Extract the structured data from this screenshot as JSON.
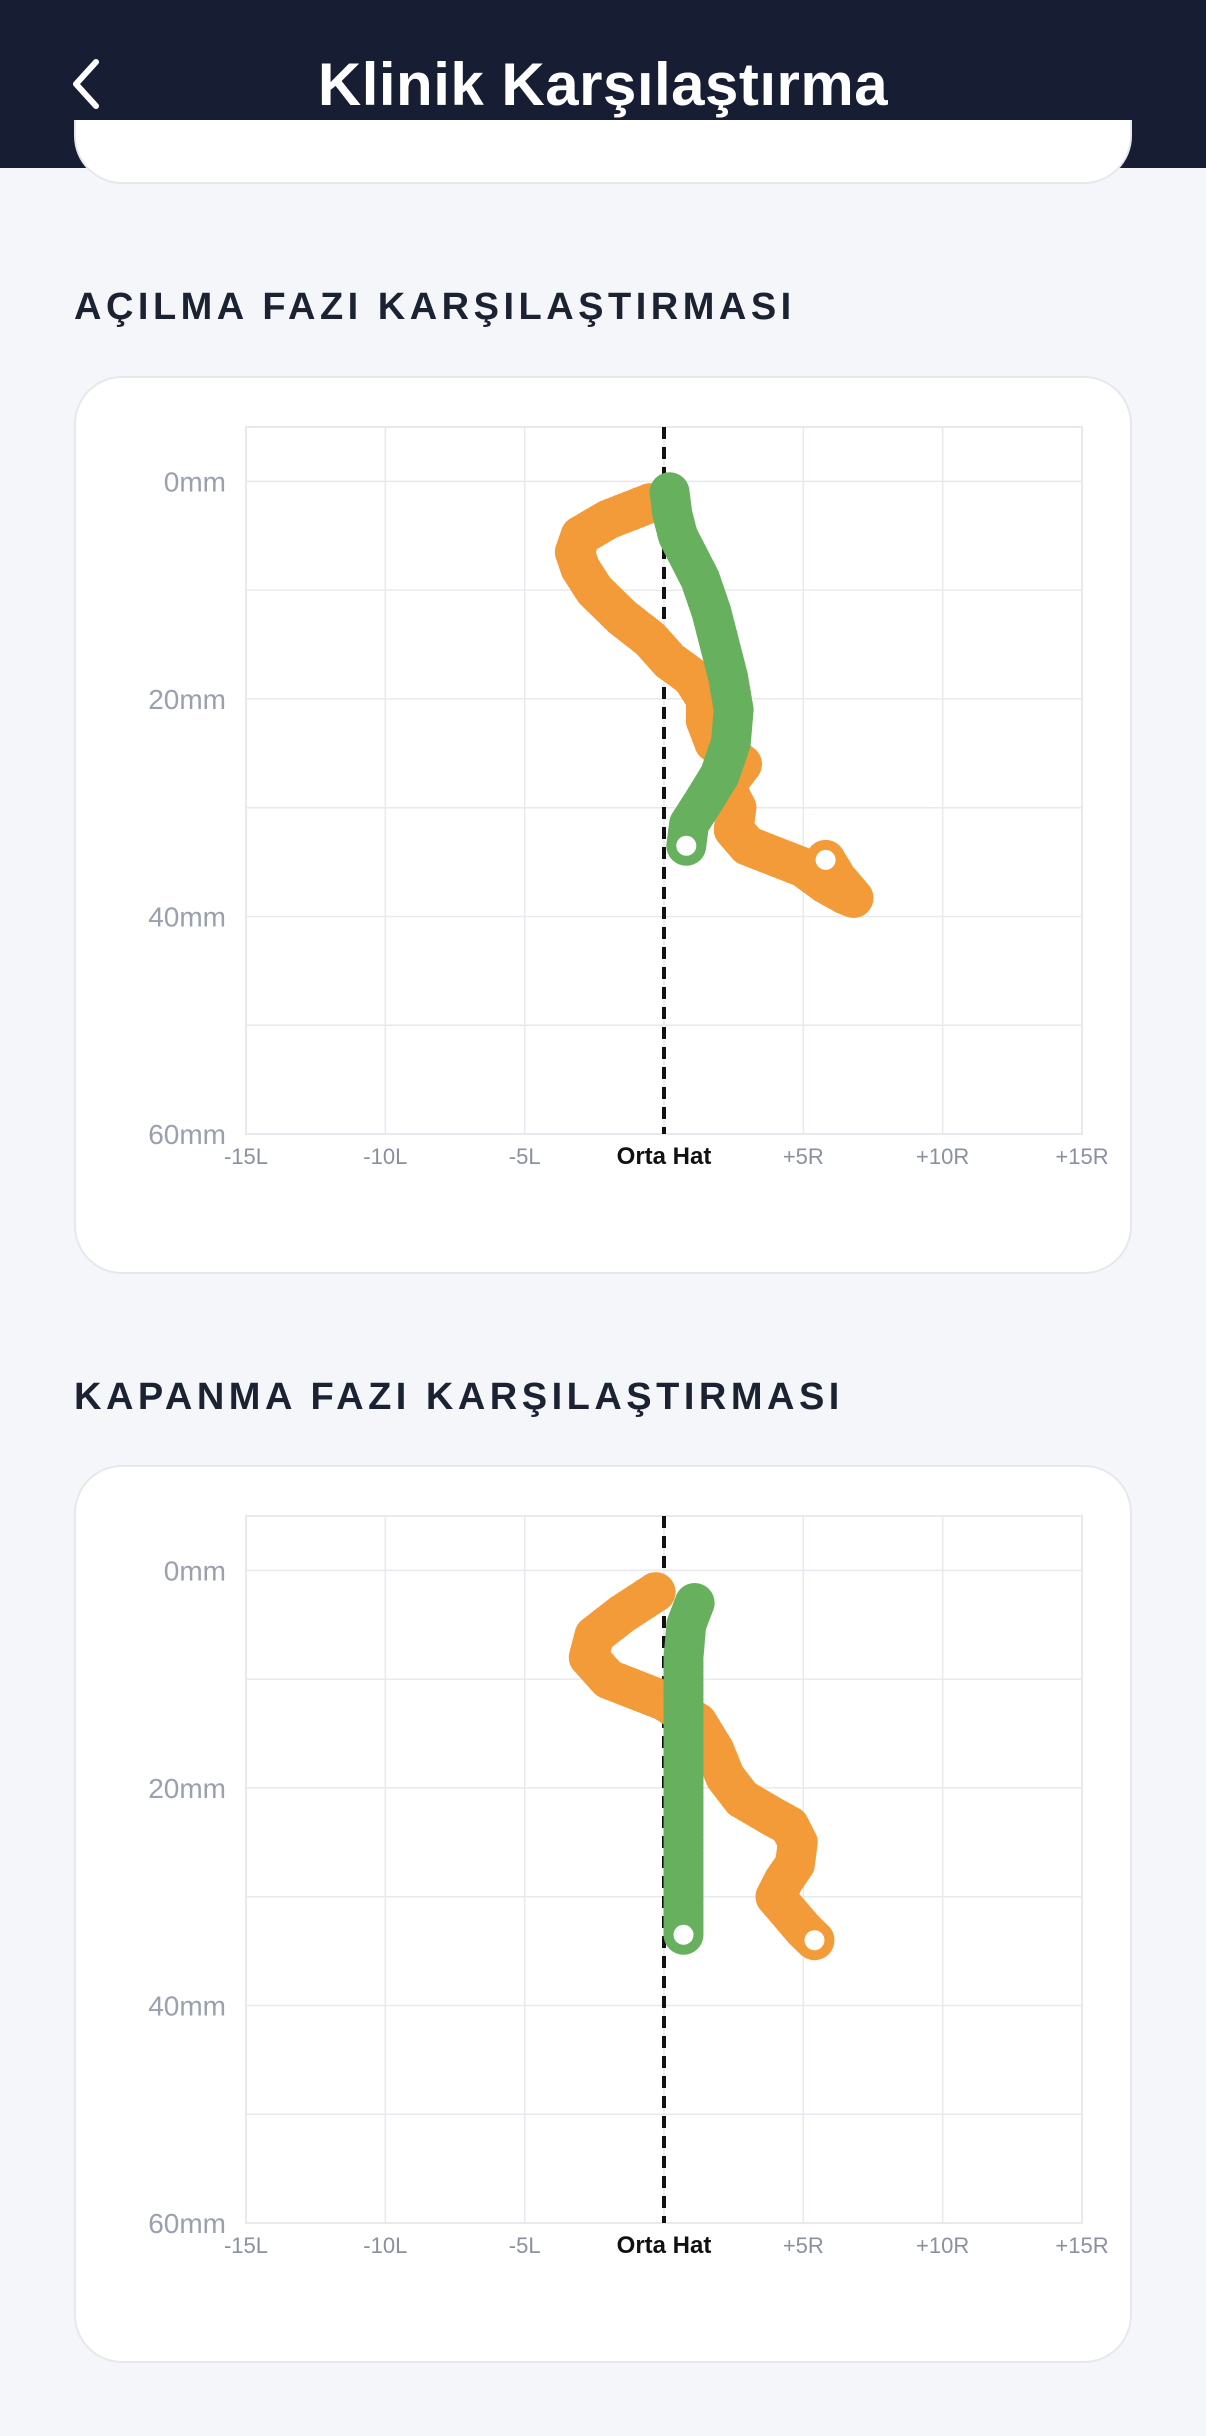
{
  "header": {
    "title": "Klinik Karşılaştırma"
  },
  "sections": [
    {
      "title": "AÇILMA FAZI KARŞILAŞTIRMASI"
    },
    {
      "title": "KAPANMA FAZI KARŞILAŞTIRMASI"
    }
  ],
  "colors": {
    "orange": "#f29b38",
    "green": "#66b05e",
    "midline": "#111111",
    "grid": "#e8e9ee"
  },
  "chart_data": [
    {
      "type": "scatter",
      "title": "",
      "xlabel": "",
      "ylabel": "",
      "xlim": [
        -15,
        15
      ],
      "ylim": [
        60,
        -5
      ],
      "x_ticks": [
        -15,
        -10,
        -5,
        0,
        5,
        10,
        15
      ],
      "x_tick_labels": [
        "-15L",
        "-10L",
        "-5L",
        "Orta Hat",
        "+5R",
        "+10R",
        "+15R"
      ],
      "y_ticks": [
        0,
        20,
        40,
        60
      ],
      "y_tick_labels": [
        "0mm",
        "20mm",
        "40mm",
        "60mm"
      ],
      "midline_x": 0,
      "series": [
        {
          "color": "#f29b38",
          "points": [
            [
              -0.5,
              2
            ],
            [
              -2,
              3.5
            ],
            [
              -3,
              5
            ],
            [
              -3.2,
              6.5
            ],
            [
              -3,
              8
            ],
            [
              -2.5,
              10
            ],
            [
              -1.5,
              12.5
            ],
            [
              -0.5,
              14.5
            ],
            [
              0.2,
              16.5
            ],
            [
              1,
              18
            ],
            [
              1.5,
              20
            ],
            [
              1.5,
              22
            ],
            [
              1.8,
              24
            ],
            [
              2.8,
              26
            ],
            [
              2.2,
              28
            ],
            [
              2.6,
              30
            ],
            [
              2.5,
              32
            ],
            [
              3,
              33.5
            ],
            [
              4,
              34.5
            ],
            [
              5,
              35.5
            ],
            [
              5.8,
              37
            ],
            [
              6.5,
              38
            ],
            [
              6.8,
              38.3
            ],
            [
              6.2,
              36.5
            ],
            [
              5.8,
              34.8
            ]
          ]
        },
        {
          "color": "#66b05e",
          "points": [
            [
              0.2,
              1
            ],
            [
              0.3,
              3
            ],
            [
              0.5,
              5
            ],
            [
              0.9,
              7
            ],
            [
              1.3,
              9
            ],
            [
              1.7,
              12
            ],
            [
              2,
              15
            ],
            [
              2.3,
              18
            ],
            [
              2.5,
              21
            ],
            [
              2.4,
              24
            ],
            [
              2,
              27
            ],
            [
              1.4,
              29.5
            ],
            [
              0.9,
              31.5
            ],
            [
              0.8,
              33.5
            ]
          ]
        }
      ]
    },
    {
      "type": "scatter",
      "title": "",
      "xlabel": "",
      "ylabel": "",
      "xlim": [
        -15,
        15
      ],
      "ylim": [
        60,
        -5
      ],
      "x_ticks": [
        -15,
        -10,
        -5,
        0,
        5,
        10,
        15
      ],
      "x_tick_labels": [
        "-15L",
        "-10L",
        "-5L",
        "Orta Hat",
        "+5R",
        "+10R",
        "+15R"
      ],
      "y_ticks": [
        0,
        20,
        40,
        60
      ],
      "y_tick_labels": [
        "0mm",
        "20mm",
        "40mm",
        "60mm"
      ],
      "midline_x": 0,
      "series": [
        {
          "color": "#f29b38",
          "points": [
            [
              -0.3,
              2
            ],
            [
              -1.5,
              4
            ],
            [
              -2.5,
              6
            ],
            [
              -2.7,
              8
            ],
            [
              -2,
              10
            ],
            [
              0,
              12
            ],
            [
              1.2,
              14
            ],
            [
              1.8,
              16.5
            ],
            [
              2.2,
              19
            ],
            [
              2.8,
              21
            ],
            [
              3.8,
              22.5
            ],
            [
              4.5,
              23.5
            ],
            [
              4.8,
              25
            ],
            [
              4.7,
              27
            ],
            [
              4.3,
              28.5
            ],
            [
              4,
              30
            ],
            [
              4.5,
              31.5
            ],
            [
              5,
              33
            ],
            [
              5.4,
              34
            ]
          ]
        },
        {
          "color": "#66b05e",
          "points": [
            [
              1.1,
              3
            ],
            [
              0.8,
              5
            ],
            [
              0.7,
              8
            ],
            [
              0.7,
              11
            ],
            [
              0.7,
              14
            ],
            [
              0.7,
              17
            ],
            [
              0.7,
              20
            ],
            [
              0.7,
              23
            ],
            [
              0.7,
              26
            ],
            [
              0.7,
              29
            ],
            [
              0.7,
              32
            ],
            [
              0.7,
              33.5
            ]
          ]
        }
      ]
    }
  ]
}
